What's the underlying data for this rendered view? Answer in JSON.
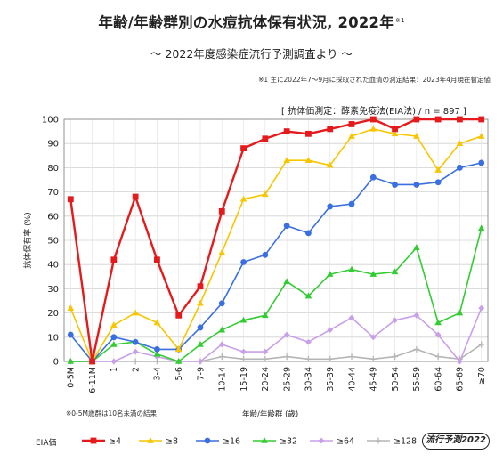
{
  "header": {
    "title": "年齢/年齢群別の水痘抗体保有状況, 2022年",
    "title_note": "※1",
    "subtitle": "～ 2022年度感染症流行予測調査より ～",
    "note1": "※1 主に2022年7～9月に採取された血清の測定結果：2023年4月現在暫定値",
    "method": "[ 抗体価測定：酵素免疫法(EIA法) / n = 897 ]"
  },
  "footer": {
    "footnote": "※0-5M歳群は10名未満の結果",
    "eia_label": "EIA価",
    "badge": "流行予測2022"
  },
  "colors": {
    "s4": "#e41a1c",
    "s8": "#f7c600",
    "s16": "#3a6fe0",
    "s32": "#33cc33",
    "s64": "#c8a0e8",
    "s128": "#b5b5b5"
  },
  "chart_data": {
    "type": "line",
    "ylabel": "抗体保有率 (%)",
    "xlabel": "年齢/年齢群 (歳)",
    "ylim": [
      0,
      100
    ],
    "yticks": [
      0,
      10,
      20,
      30,
      40,
      50,
      60,
      70,
      80,
      90,
      100
    ],
    "grid": true,
    "categories": [
      "0-5M",
      "6-11M",
      "1",
      "2",
      "3-4",
      "5-6",
      "7-9",
      "10-14",
      "15-19",
      "20-24",
      "25-29",
      "30-34",
      "35-39",
      "40-44",
      "45-49",
      "50-54",
      "55-59",
      "60-64",
      "65-69",
      "≥70"
    ],
    "series": [
      {
        "name": "≥4",
        "key": "s4",
        "marker": "square",
        "values": [
          67,
          0,
          42,
          68,
          42,
          19,
          31,
          62,
          88,
          92,
          95,
          94,
          96,
          98,
          100,
          96,
          100,
          100,
          100,
          100
        ]
      },
      {
        "name": "≥8",
        "key": "s8",
        "marker": "triangle",
        "values": [
          22,
          0,
          15,
          20,
          16,
          5,
          24,
          45,
          67,
          69,
          83,
          83,
          81,
          93,
          96,
          94,
          93,
          79,
          90,
          93
        ]
      },
      {
        "name": "≥16",
        "key": "s16",
        "marker": "circle",
        "values": [
          11,
          0,
          10,
          8,
          5,
          5,
          14,
          24,
          41,
          44,
          56,
          53,
          64,
          65,
          76,
          73,
          73,
          74,
          80,
          82
        ]
      },
      {
        "name": "≥32",
        "key": "s32",
        "marker": "triangle",
        "values": [
          0,
          0,
          7,
          8,
          3,
          0,
          7,
          13,
          17,
          19,
          33,
          27,
          36,
          38,
          36,
          37,
          47,
          16,
          20,
          55
        ]
      },
      {
        "name": "≥64",
        "key": "s64",
        "marker": "diamond",
        "values": [
          0,
          0,
          0,
          4,
          2,
          0,
          0,
          7,
          4,
          4,
          11,
          8,
          13,
          18,
          10,
          17,
          19,
          11,
          0,
          22
        ]
      },
      {
        "name": "≥128",
        "key": "s128",
        "marker": "cross",
        "values": [
          0,
          0,
          0,
          0,
          0,
          0,
          0,
          2,
          1,
          1,
          2,
          1,
          1,
          2,
          1,
          2,
          5,
          2,
          1,
          7
        ]
      }
    ]
  }
}
